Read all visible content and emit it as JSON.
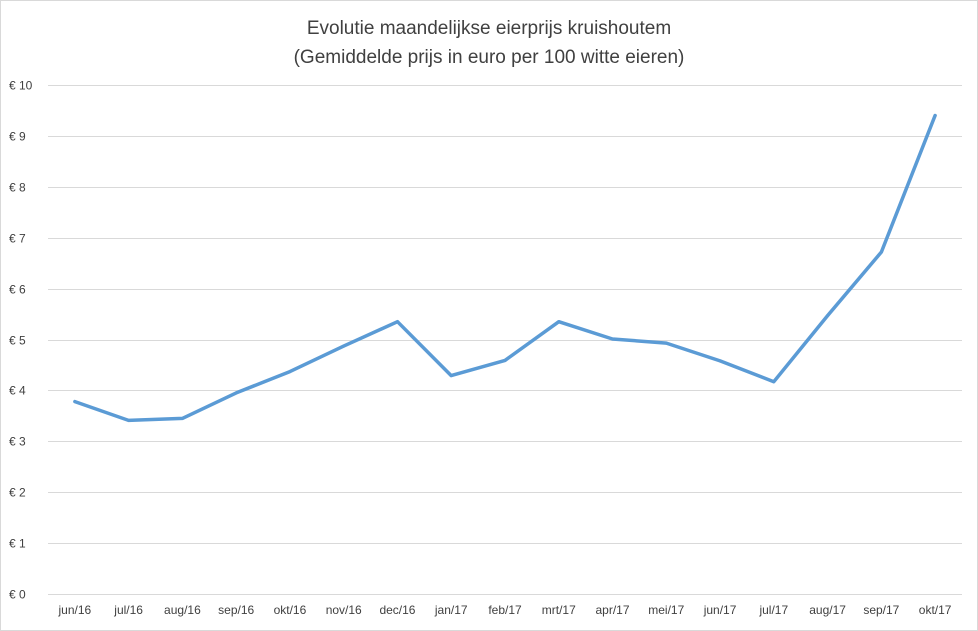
{
  "chart_data": {
    "type": "line",
    "title": "Evolutie maandelijkse eierprijs kruishoutem",
    "subtitle": "(Gemiddelde prijs in euro per 100 witte eieren)",
    "categories": [
      "jun/16",
      "jul/16",
      "aug/16",
      "sep/16",
      "okt/16",
      "nov/16",
      "dec/16",
      "jan/17",
      "feb/17",
      "mrt/17",
      "apr/17",
      "mei/17",
      "jun/17",
      "jul/17",
      "aug/17",
      "sep/17",
      "okt/17"
    ],
    "series": [
      {
        "values": [
          3.78,
          3.41,
          3.45,
          3.95,
          4.37,
          4.87,
          5.35,
          4.29,
          4.59,
          5.35,
          5.01,
          4.93,
          4.58,
          4.17,
          5.47,
          6.72,
          9.4
        ]
      }
    ],
    "ylim": [
      0,
      10
    ],
    "yticks": [
      0,
      1,
      2,
      3,
      4,
      5,
      6,
      7,
      8,
      9,
      10
    ],
    "ytick_labels": [
      "€ 0",
      "€ 1",
      "€ 2",
      "€ 3",
      "€ 4",
      "€ 5",
      "€ 6",
      "€ 7",
      "€ 8",
      "€ 9",
      "€ 10"
    ],
    "xlabel": "",
    "ylabel": "",
    "grid": "horizontal",
    "legend": "none",
    "colors": {
      "line": "#5b9bd5",
      "grid": "#d9d9d9",
      "text": "#404040"
    }
  }
}
